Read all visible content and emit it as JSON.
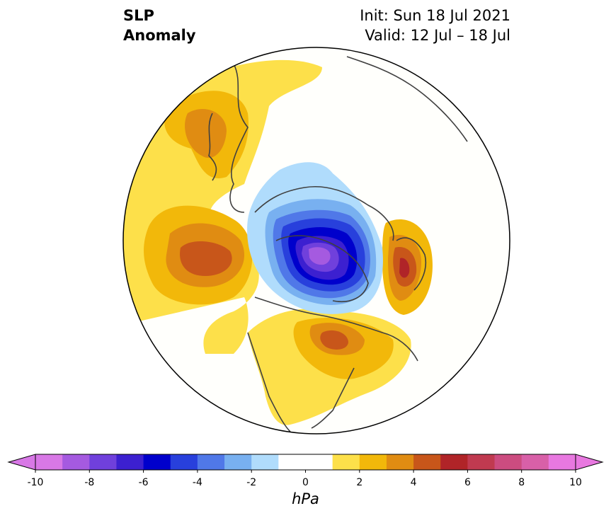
{
  "title": {
    "left_line1": "SLP",
    "left_line2": "Anomaly",
    "init": "Init: Sun 18 Jul 2021",
    "valid": "Valid: 12 Jul – 18 Jul"
  },
  "map": {
    "projection": "North polar stereographic",
    "field": "SLP anomaly"
  },
  "colorbar": {
    "unit": "hPa",
    "range": [
      -10,
      10
    ],
    "step": 1,
    "extend": "both",
    "ticks": [
      "-10",
      "-8",
      "-6",
      "-4",
      "-2",
      "0",
      "2",
      "4",
      "6",
      "8",
      "10"
    ],
    "under_color": "#d878e6",
    "over_color": "#e878e0",
    "colors": [
      "#d878e6",
      "#a55ae0",
      "#7040dc",
      "#3c20d0",
      "#0000cc",
      "#2840dc",
      "#5078e8",
      "#78b0f0",
      "#b0dcfc",
      "#ffffff",
      "#ffffff",
      "#fde04a",
      "#f2b80a",
      "#e08c12",
      "#c8561a",
      "#b02428",
      "#c03a50",
      "#cc4c80",
      "#d860a8",
      "#e878e0"
    ]
  }
}
